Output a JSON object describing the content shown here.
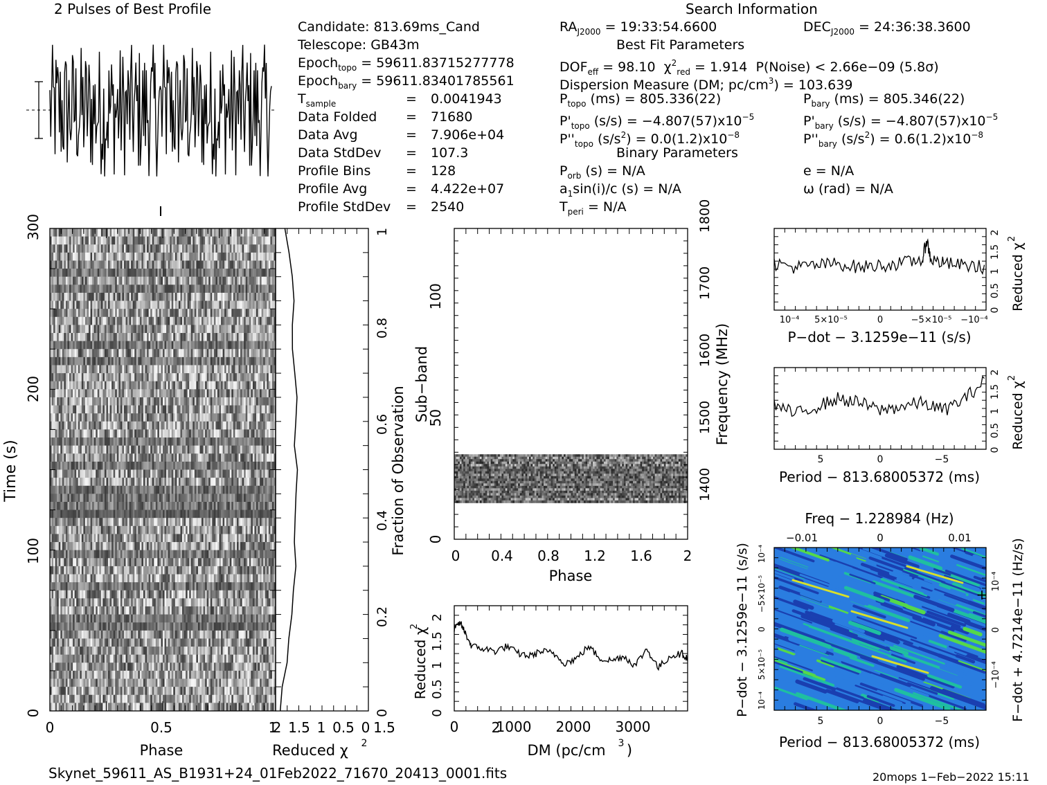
{
  "header": {
    "profile_title": "2 Pulses of Best Profile",
    "search_title": "Search Information"
  },
  "info": {
    "candidate": "Candidate:  813.69ms_Cand",
    "telescope": "Telescope:  GB43m",
    "epoch_topo_label": "Epoch",
    "epoch_topo_sub": "topo",
    "epoch_topo_val": "= 59611.83715277778",
    "epoch_bary_label": "Epoch",
    "epoch_bary_sub": "bary",
    "epoch_bary_val": "= 59611.83401785561",
    "rows": [
      {
        "label": "T",
        "sub": "sample",
        "eq": "=",
        "val": "0.0041943"
      },
      {
        "label": "Data Folded",
        "sub": "",
        "eq": "=",
        "val": "71680"
      },
      {
        "label": "Data Avg",
        "sub": "",
        "eq": "=",
        "val": "7.906e+04"
      },
      {
        "label": "Data StdDev",
        "sub": "",
        "eq": "=",
        "val": "107.3"
      },
      {
        "label": "Profile Bins",
        "sub": "",
        "eq": "=",
        "val": "128"
      },
      {
        "label": "Profile Avg",
        "sub": "",
        "eq": "=",
        "val": "4.422e+07"
      },
      {
        "label": "Profile StdDev",
        "sub": "",
        "eq": "=",
        "val": "2540"
      }
    ]
  },
  "search": {
    "ra_label": "RA",
    "ra_sub": "J2000",
    "ra_val": "= 19:33:54.6600",
    "dec_label": "DEC",
    "dec_sub": "J2000",
    "dec_val": "= 24:36:38.3600",
    "best_fit_title": "Best Fit Parameters",
    "dof_label": "DOF",
    "dof_sub": "eff",
    "dof_val": "= 98.10",
    "chi_label": "χ",
    "chi_sup": "2",
    "chi_sub": "red",
    "chi_val": "= 1.914",
    "pnoise": "P(Noise) < 2.66e−09   (5.8σ)",
    "dm_line": "Dispersion Measure (DM; pc/cm",
    "dm_sup": "3",
    "dm_val": ") = 103.639",
    "ptopo_label": "P",
    "ptopo_sub": "topo",
    "ptopo_val": "(ms) =  805.336(22)",
    "pbary_label": "P",
    "pbary_sub": "bary",
    "pbary_val": "(ms) =  805.346(22)",
    "pdtopo_label": "P'",
    "pdtopo_sub": "topo",
    "pdtopo_val": "(s/s) = −4.807(57)x10",
    "pdtopo_exp": "−5",
    "pdbary_label": "P'",
    "pdbary_sub": "bary",
    "pdbary_val": "(s/s) = −4.807(57)x10",
    "pdbary_exp": "−5",
    "pddtopo_label": "P''",
    "pddtopo_sub": "topo",
    "pddtopo_val": "(s/s",
    "pddtopo_sup2": "2",
    "pddtopo_val2": ") = 0.0(1.2)x10",
    "pddtopo_exp": "−8",
    "pddbary_label": "P''",
    "pddbary_sub": "bary",
    "pddbary_val": "(s/s",
    "pddbary_sup2": "2",
    "pddbary_val2": ") =  0.6(1.2)x10",
    "pddbary_exp": "−8",
    "binary_title": "Binary Parameters",
    "porb_label": "P",
    "porb_sub": "orb",
    "porb_val": "(s) = N/A",
    "e_line": "e = N/A",
    "a1_label": "a",
    "a1_sub": "1",
    "a1_val": "sin(i)/c (s) = N/A",
    "omega_line": "ω (rad) = N/A",
    "tperi_label": "T",
    "tperi_sub": "peri",
    "tperi_val": "= N/A"
  },
  "footer": {
    "filename": "Skynet_59611_AS_B1931+24_01Feb2022_71670_20413_0001.fits",
    "stamp": "20mops   1−Feb−2022 15:11"
  },
  "chart_data": [
    {
      "type": "heatmap",
      "name": "time-vs-phase",
      "xlabel": "Phase",
      "ylabel": "Time (s)",
      "xlim": [
        0,
        2
      ],
      "ylim": [
        0,
        300
      ],
      "x_ticks": [
        "0",
        "0.5",
        "1",
        "1.5",
        "2"
      ],
      "y_ticks": [
        "0",
        "100",
        "200",
        "300"
      ],
      "colormap": "grayscale"
    },
    {
      "type": "line",
      "name": "time-reduced-chi2",
      "xlabel": "Reduced χ",
      "xlabel_sup": "2",
      "x_ticks": [
        "2",
        "1.5",
        "1",
        "0.5",
        "0"
      ],
      "right_label": "Fraction of Observation",
      "right_ticks": [
        "0",
        "0.2",
        "0.4",
        "0.6",
        "0.8",
        "1"
      ],
      "fraction": [
        0,
        0.05,
        0.1,
        0.15,
        0.2,
        0.25,
        0.3,
        0.35,
        0.4,
        0.45,
        0.5,
        0.55,
        0.6,
        0.65,
        0.7,
        0.75,
        0.8,
        0.85,
        0.9,
        0.95,
        1
      ],
      "chi2": [
        1.9,
        1.85,
        1.75,
        1.7,
        1.65,
        1.6,
        1.58,
        1.6,
        1.58,
        1.55,
        1.55,
        1.6,
        1.55,
        1.55,
        1.6,
        1.62,
        1.62,
        1.62,
        1.65,
        1.7,
        1.8
      ]
    },
    {
      "type": "heatmap",
      "name": "subband-vs-phase",
      "xlabel": "Phase",
      "ylabel": "Sub−band",
      "right_label": "Frequency (MHz)",
      "xlim": [
        0,
        2
      ],
      "ylim": [
        0,
        128
      ],
      "x_ticks": [
        "0",
        "0.4",
        "0.8",
        "1.2",
        "1.6",
        "2"
      ],
      "y_ticks": [
        "0",
        "50",
        "100"
      ],
      "right_ticks": [
        "1400",
        "1500",
        "1600",
        "1700",
        "1800"
      ],
      "band_range": [
        15,
        35
      ]
    },
    {
      "type": "line",
      "name": "dm-curve",
      "xlabel": "DM (pc/cm",
      "xlabel_sup": "3",
      "xlabel_end": ")",
      "ylabel": "Reduced χ",
      "ylabel_sup": "2",
      "xlim": [
        0,
        4000
      ],
      "ylim": [
        0,
        2.2
      ],
      "x_ticks": [
        "0",
        "1000",
        "2000",
        "3000"
      ],
      "y_ticks": [
        "0",
        "0.5",
        "1",
        "1.5",
        "2"
      ],
      "x": [
        0,
        100,
        200,
        300,
        500,
        700,
        900,
        1100,
        1300,
        1500,
        1700,
        1900,
        2100,
        2300,
        2500,
        2700,
        2900,
        3100,
        3300,
        3500,
        3700,
        3900,
        4000
      ],
      "y": [
        1.7,
        1.85,
        1.6,
        1.35,
        1.3,
        1.25,
        1.35,
        1.2,
        1.15,
        1.25,
        1.2,
        1.0,
        1.1,
        1.35,
        1.1,
        1.05,
        1.15,
        0.95,
        1.3,
        0.9,
        1.15,
        1.2,
        1.1
      ]
    },
    {
      "type": "line",
      "name": "pdot-curve",
      "xlabel": "P−dot − 3.1259e−11 (s/s)",
      "ylabel": "Reduced χ",
      "ylabel_sup": "2",
      "x_ticks": [
        "10⁻⁴",
        "5×10⁻⁵",
        "0",
        "−5×10⁻⁵",
        "−10⁻⁴"
      ],
      "y_ticks": [
        "0",
        "0.5",
        "1",
        "1.5",
        "2"
      ],
      "ylim": [
        0,
        2.1
      ],
      "x": [
        0,
        0.1,
        0.2,
        0.3,
        0.4,
        0.5,
        0.6,
        0.7,
        0.72,
        0.74,
        0.8,
        0.9,
        1.0
      ],
      "y": [
        1.2,
        1.1,
        1.15,
        1.2,
        1.1,
        1.15,
        1.2,
        1.3,
        1.8,
        1.3,
        1.2,
        1.15,
        1.1
      ]
    },
    {
      "type": "line",
      "name": "period-curve",
      "xlabel": "Period − 813.68005372 (ms)",
      "ylabel": "Reduced χ",
      "ylabel_sup": "2",
      "x_ticks": [
        "5",
        "0",
        "−5"
      ],
      "y_ticks": [
        "0",
        "0.5",
        "1",
        "1.5",
        "2"
      ],
      "ylim": [
        0,
        2.1
      ],
      "x": [
        0,
        0.1,
        0.2,
        0.3,
        0.4,
        0.5,
        0.6,
        0.7,
        0.8,
        0.9,
        1.0
      ],
      "y": [
        1.15,
        0.9,
        1.1,
        1.3,
        1.2,
        1.0,
        1.1,
        1.2,
        1.0,
        1.3,
        1.8
      ]
    },
    {
      "type": "heatmap",
      "name": "pdot-period-plane",
      "title": "Freq − 1.228984 (Hz)",
      "top_ticks": [
        "−0.01",
        "0",
        "0.01"
      ],
      "xlabel": "Period − 813.68005372 (ms)",
      "x_ticks": [
        "5",
        "0",
        "−5"
      ],
      "ylabel": "P−dot − 3.1259e−11 (s/s)",
      "y_ticks": [
        "10⁻⁴",
        "5×10⁻⁵",
        "0",
        "−5×10⁻⁵",
        "10⁻⁴"
      ],
      "right_label": "F−dot + 4.7214e−11 (Hz/s)",
      "right_ticks": [
        "10⁻⁴",
        "0",
        "−10⁻⁴"
      ],
      "colors": [
        "#1a3fb0",
        "#2a7de0",
        "#1fbfa0",
        "#55d84a",
        "#d8e02a"
      ]
    }
  ]
}
